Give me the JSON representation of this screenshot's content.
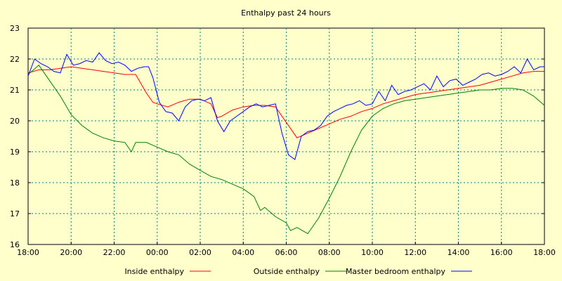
{
  "chart_data": {
    "type": "line",
    "title": "Enthalpy past 24 hours",
    "xlabel": "",
    "ylabel": "",
    "ylim": [
      16,
      23
    ],
    "yticks": [
      "16",
      "17",
      "18",
      "19",
      "20",
      "21",
      "22",
      "23"
    ],
    "xticks": [
      "18:00",
      "20:00",
      "22:00",
      "00:00",
      "02:00",
      "04:00",
      "06:00",
      "08:00",
      "10:00",
      "12:00",
      "14:00",
      "16:00",
      "18:00"
    ],
    "grid": true,
    "legend_position": "bottom",
    "series": [
      {
        "name": "Inside enthalpy",
        "color": "#ff0000",
        "x": [
          0,
          0.5,
          1,
          1.5,
          2,
          2.5,
          3,
          3.5,
          4,
          4.5,
          5,
          5.5,
          5.8,
          6,
          6.5,
          7,
          7.5,
          8,
          8.5,
          8.8,
          9,
          9.5,
          10,
          10.5,
          11,
          11.5,
          12,
          12.5,
          13,
          13.5,
          14,
          14.5,
          15,
          15.5,
          16,
          16.5,
          17,
          17.5,
          18,
          18.5,
          19,
          19.5,
          20,
          20.5,
          21,
          21.5,
          22,
          22.5,
          23,
          23.5,
          24
        ],
        "y": [
          21.55,
          21.65,
          21.65,
          21.7,
          21.75,
          21.7,
          21.65,
          21.6,
          21.55,
          21.5,
          21.5,
          20.9,
          20.6,
          20.55,
          20.45,
          20.6,
          20.7,
          20.7,
          20.55,
          20.1,
          20.15,
          20.35,
          20.45,
          20.5,
          20.5,
          20.45,
          19.95,
          19.45,
          19.6,
          19.75,
          19.9,
          20.05,
          20.15,
          20.3,
          20.4,
          20.55,
          20.65,
          20.75,
          20.85,
          20.9,
          20.95,
          21.0,
          21.05,
          21.1,
          21.15,
          21.25,
          21.35,
          21.45,
          21.55,
          21.6,
          21.6
        ]
      },
      {
        "name": "Outside enthalpy",
        "color": "#008000",
        "x": [
          0,
          0.5,
          1,
          1.5,
          2,
          2.5,
          3,
          3.5,
          4,
          4.5,
          4.8,
          5,
          5.5,
          6,
          6.5,
          7,
          7.5,
          8,
          8.5,
          9,
          9.5,
          10,
          10.5,
          10.8,
          11,
          11.5,
          12,
          12.2,
          12.5,
          13,
          13.5,
          14,
          14.5,
          15,
          15.5,
          16,
          16.5,
          17,
          17.5,
          18,
          18.5,
          19,
          19.5,
          20,
          20.5,
          21,
          21.5,
          22,
          22.5,
          23,
          23.5,
          24
        ],
        "y": [
          21.5,
          21.8,
          21.3,
          20.8,
          20.2,
          19.85,
          19.6,
          19.45,
          19.35,
          19.3,
          19.0,
          19.3,
          19.3,
          19.15,
          19.0,
          18.9,
          18.6,
          18.4,
          18.2,
          18.1,
          17.95,
          17.8,
          17.55,
          17.1,
          17.2,
          16.9,
          16.7,
          16.45,
          16.55,
          16.35,
          16.85,
          17.5,
          18.2,
          19.0,
          19.7,
          20.15,
          20.4,
          20.55,
          20.65,
          20.7,
          20.75,
          20.8,
          20.85,
          20.9,
          20.95,
          21.0,
          21.0,
          21.05,
          21.05,
          21.0,
          20.8,
          20.5
        ]
      },
      {
        "name": "Master bedroom enthalpy",
        "color": "#0000ff",
        "x": [
          0,
          0.3,
          0.6,
          0.9,
          1.2,
          1.5,
          1.8,
          2.1,
          2.4,
          2.7,
          3,
          3.3,
          3.6,
          3.9,
          4.2,
          4.5,
          4.8,
          5.1,
          5.4,
          5.6,
          5.8,
          6.1,
          6.4,
          6.7,
          7,
          7.3,
          7.6,
          7.9,
          8.2,
          8.5,
          8.8,
          9.1,
          9.4,
          9.7,
          10,
          10.3,
          10.6,
          10.9,
          11.2,
          11.5,
          11.8,
          12.1,
          12.4,
          12.7,
          13,
          13.3,
          13.6,
          13.9,
          14.2,
          14.5,
          14.8,
          15.1,
          15.4,
          15.7,
          16,
          16.3,
          16.6,
          16.9,
          17.2,
          17.5,
          17.8,
          18.1,
          18.4,
          18.7,
          19,
          19.3,
          19.6,
          19.9,
          20.2,
          20.5,
          20.8,
          21.1,
          21.4,
          21.7,
          22,
          22.3,
          22.6,
          22.9,
          23.2,
          23.5,
          23.8,
          24
        ],
        "y": [
          21.45,
          22.0,
          21.85,
          21.75,
          21.6,
          21.55,
          22.15,
          21.8,
          21.85,
          21.95,
          21.9,
          22.2,
          21.95,
          21.85,
          21.9,
          21.8,
          21.6,
          21.7,
          21.75,
          21.75,
          21.4,
          20.6,
          20.3,
          20.25,
          20.0,
          20.45,
          20.65,
          20.7,
          20.65,
          20.75,
          20.0,
          19.65,
          20.0,
          20.15,
          20.3,
          20.45,
          20.55,
          20.45,
          20.5,
          20.55,
          19.6,
          18.9,
          18.75,
          19.5,
          19.65,
          19.7,
          19.85,
          20.15,
          20.3,
          20.4,
          20.5,
          20.55,
          20.65,
          20.5,
          20.55,
          20.95,
          20.65,
          21.15,
          20.85,
          20.95,
          21.0,
          21.1,
          21.2,
          21.0,
          21.45,
          21.1,
          21.3,
          21.35,
          21.15,
          21.25,
          21.35,
          21.5,
          21.55,
          21.45,
          21.5,
          21.6,
          21.75,
          21.55,
          22.0,
          21.65,
          21.75,
          21.75
        ]
      }
    ]
  }
}
